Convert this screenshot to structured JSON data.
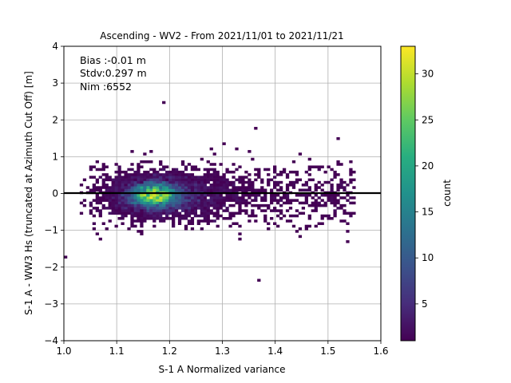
{
  "chart_data": {
    "type": "heatmap",
    "title": "Ascending - WV2 - From 2021/11/01 to 2021/11/21",
    "xlabel": "S-1 A Normalized variance",
    "ylabel": "S-1 A - WW3 Hs (truncated at Azimuth Cut Off) [m]",
    "xlim": [
      1.0,
      1.6
    ],
    "ylim": [
      -4,
      4
    ],
    "xticks": [
      "1.0",
      "1.1",
      "1.2",
      "1.3",
      "1.4",
      "1.5",
      "1.6"
    ],
    "yticks": [
      "−4",
      "−3",
      "−2",
      "−1",
      "0",
      "1",
      "2",
      "3",
      "4"
    ],
    "grid": true,
    "reference_line_y": 0,
    "annotations": [
      "Bias :-0.01 m",
      "Stdv:0.297 m",
      "Nim :6552"
    ],
    "colorbar": {
      "label": "count",
      "range": [
        1,
        33
      ],
      "ticks": [
        "5",
        "10",
        "15",
        "20",
        "25",
        "30"
      ],
      "colormap": "viridis"
    },
    "density_peak": {
      "x": 1.17,
      "y": -0.05,
      "count": 33
    },
    "outliers": [
      {
        "x": 1.19,
        "y": 2.5
      },
      {
        "x": 1.36,
        "y": 1.75
      },
      {
        "x": 1.37,
        "y": -2.35
      },
      {
        "x": 1.0,
        "y": -1.75
      },
      {
        "x": 1.52,
        "y": 1.5
      }
    ]
  }
}
